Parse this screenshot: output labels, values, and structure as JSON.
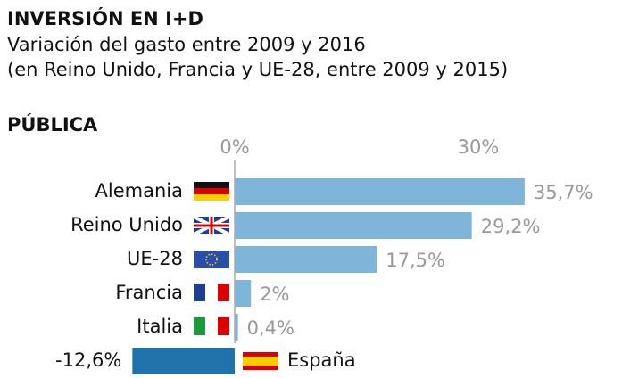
{
  "chart_data": {
    "type": "bar",
    "orientation": "horizontal",
    "title": "INVERSIÓN EN I+D",
    "subtitle": [
      "Variación del gasto entre 2009 y 2016",
      "(en Reino Unido, Francia y UE-28, entre 2009 y 2015)"
    ],
    "section": "PÚBLICA",
    "categories": [
      "Alemania",
      "Reino Unido",
      "UE-28",
      "Francia",
      "Italia",
      "España"
    ],
    "values": [
      35.7,
      29.2,
      17.5,
      2,
      0.4,
      -12.6
    ],
    "value_labels": [
      "35,7%",
      "29,2%",
      "17,5%",
      "2%",
      "0,4%",
      "-12,6%"
    ],
    "colors": [
      "#80b5da",
      "#80b5da",
      "#80b5da",
      "#80b5da",
      "#80b5da",
      "#1f72aa"
    ],
    "xlim": [
      -13,
      40
    ],
    "xticks": [
      {
        "value": 0,
        "label": "0%"
      },
      {
        "value": 30,
        "label": "30%"
      }
    ]
  }
}
